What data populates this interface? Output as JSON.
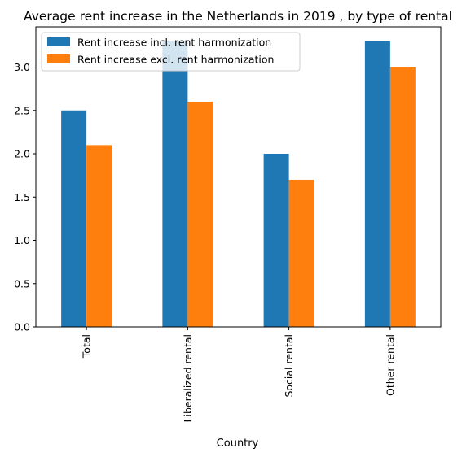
{
  "chart_data": {
    "type": "bar",
    "title": "Average rent increase in the Netherlands in 2019 , by type of rental",
    "xlabel": "Country",
    "ylabel": "",
    "categories": [
      "Total",
      "Liberalized rental",
      "Social rental",
      "Other rental"
    ],
    "series": [
      {
        "name": "Rent increase incl. rent harmonization",
        "color": "#1f77b4",
        "values": [
          2.5,
          3.3,
          2.0,
          3.3
        ]
      },
      {
        "name": "Rent increase excl. rent harmonization",
        "color": "#ff7f0e",
        "values": [
          2.1,
          2.6,
          1.7,
          3.0
        ]
      }
    ],
    "ylim": [
      0,
      3.465
    ],
    "yticks": [
      "0.0",
      "0.5",
      "1.0",
      "1.5",
      "2.0",
      "2.5",
      "3.0"
    ],
    "grid": false,
    "legend_position": "top-left"
  }
}
